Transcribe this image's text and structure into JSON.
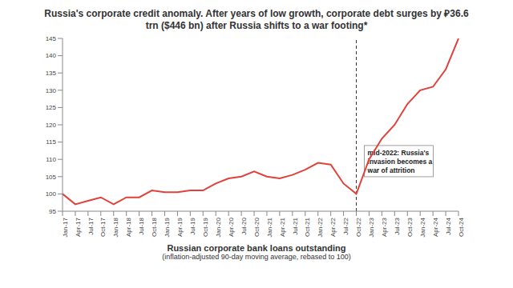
{
  "chart_data": {
    "type": "line",
    "title": "Russia's corporate credit anomaly.  After years of low growth, corporate debt surges by ₽36.6 trn ($446 bn) after Russia shifts to a war footing*",
    "x_label": "Russian corporate bank loans outstanding",
    "subtitle": "(inflation-adjusted 90-day moving average, rebased to 100)",
    "categories": [
      "Jan-17",
      "Apr-17",
      "Jul-17",
      "Oct-17",
      "Jan-18",
      "Apr-18",
      "Jul-18",
      "Oct-18",
      "Jan-19",
      "Apr-19",
      "Jul-19",
      "Oct-19",
      "Jan-20",
      "Apr-20",
      "Jul-20",
      "Oct-20",
      "Jan-21",
      "Apr-21",
      "Jul-21",
      "Oct-21",
      "Jan-22",
      "Apr-22",
      "Jul-22",
      "Oct-22",
      "Jan-23",
      "Apr-23",
      "Jul-23",
      "Oct-23",
      "Jan-24",
      "Apr-24",
      "Jul-24",
      "Oct-24"
    ],
    "values": [
      100,
      97,
      98,
      99,
      97,
      99,
      99,
      101,
      100.5,
      100.5,
      101,
      101,
      103,
      104.5,
      105,
      106.5,
      105,
      104.5,
      105.5,
      107,
      109,
      108.5,
      103,
      100,
      110,
      116,
      120,
      126,
      130,
      131,
      136,
      145
    ],
    "color": "#e0413a",
    "ylim": [
      95,
      145
    ],
    "yticks": [
      95,
      100,
      105,
      110,
      115,
      120,
      125,
      130,
      135,
      140,
      145
    ],
    "grid": false,
    "annotations": [
      {
        "text": "mid-2022: Russia's invasion becomes a war of attrition",
        "x": "Oct-22"
      }
    ]
  }
}
